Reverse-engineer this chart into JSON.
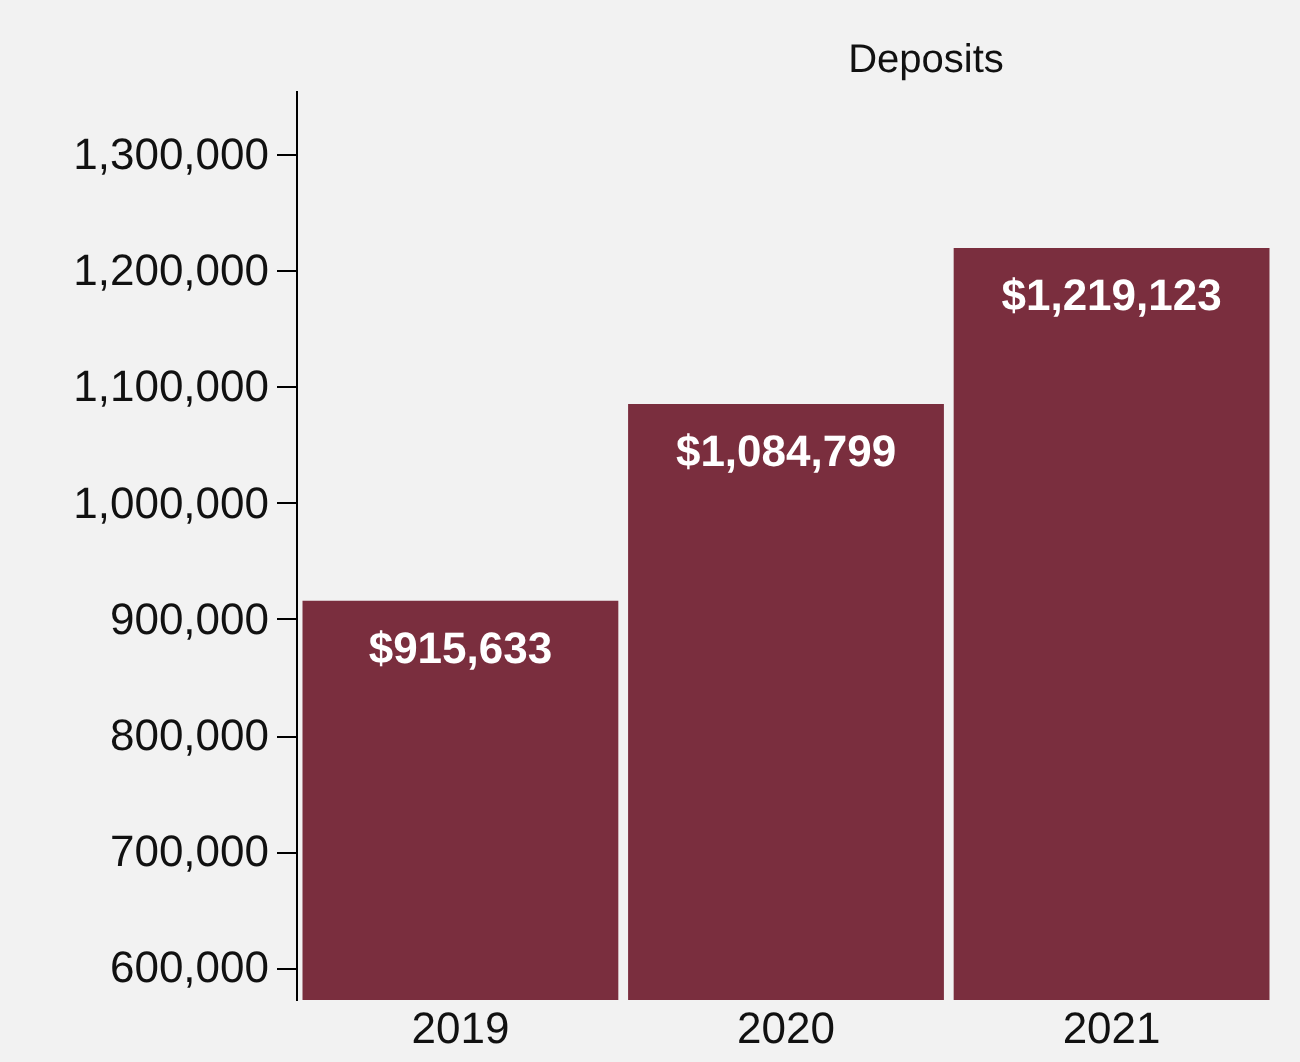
{
  "chart_data": {
    "type": "bar",
    "title": "Deposits",
    "categories": [
      "2019",
      "2020",
      "2021"
    ],
    "series": [
      {
        "color": "#7a2e3e",
        "values": [
          915633,
          1084799,
          1219123
        ],
        "value_labels": [
          "$915,633",
          "$1,084,799",
          "$1,219,123"
        ]
      }
    ],
    "ylim": [
      572000,
      1355000
    ],
    "yticks": [
      {
        "value": 600000,
        "label": "600,000"
      },
      {
        "value": 700000,
        "label": "700,000"
      },
      {
        "value": 800000,
        "label": "800,000"
      },
      {
        "value": 900000,
        "label": "900,000"
      },
      {
        "value": 1000000,
        "label": "1,000,000"
      },
      {
        "value": 1100000,
        "label": "1,100,000"
      },
      {
        "value": 1200000,
        "label": "1,200,000"
      },
      {
        "value": 1300000,
        "label": "1,300,000"
      }
    ],
    "grid": false
  }
}
